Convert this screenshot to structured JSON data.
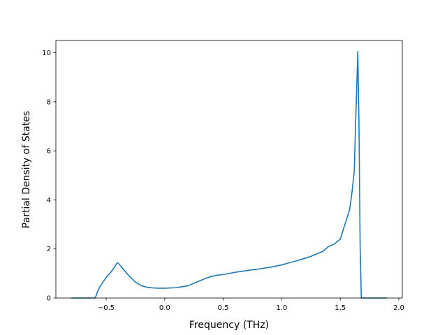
{
  "chart_data": {
    "type": "line",
    "title": "",
    "xlabel": "Frequency (THz)",
    "ylabel": "Partial Density of States",
    "xlim": [
      -0.93,
      2.03
    ],
    "ylim": [
      0,
      10.5
    ],
    "grid": false,
    "x_ticks": [
      -0.5,
      0.0,
      0.5,
      1.0,
      1.5,
      2.0
    ],
    "x_tick_labels": [
      "−0.5",
      "0.0",
      "0.5",
      "1.0",
      "1.5",
      "2.0"
    ],
    "y_ticks": [
      0,
      2,
      4,
      6,
      8,
      10
    ],
    "y_tick_labels": [
      "0",
      "2",
      "4",
      "6",
      "8",
      "10"
    ],
    "colors": {
      "line": "#1f77b4"
    },
    "series": [
      {
        "x": [
          -0.8,
          -0.6,
          -0.59,
          -0.57,
          -0.55,
          -0.52,
          -0.49,
          -0.46,
          -0.43,
          -0.41,
          -0.4,
          -0.38,
          -0.35,
          -0.3,
          -0.25,
          -0.2,
          -0.15,
          -0.1,
          -0.05,
          0.0,
          0.05,
          0.1,
          0.12,
          0.15,
          0.2,
          0.25,
          0.3,
          0.35,
          0.4,
          0.45,
          0.5,
          0.55,
          0.6,
          0.65,
          0.7,
          0.75,
          0.8,
          0.85,
          0.9,
          0.95,
          1.0,
          1.05,
          1.1,
          1.15,
          1.2,
          1.25,
          1.3,
          1.35,
          1.4,
          1.45,
          1.5,
          1.52,
          1.54,
          1.56,
          1.58,
          1.6,
          1.62,
          1.63,
          1.64,
          1.65,
          1.66,
          1.67,
          1.68,
          1.7,
          1.9
        ],
        "y": [
          0,
          0,
          0.05,
          0.3,
          0.5,
          0.7,
          0.9,
          1.05,
          1.25,
          1.42,
          1.43,
          1.33,
          1.15,
          0.88,
          0.65,
          0.5,
          0.44,
          0.41,
          0.4,
          0.4,
          0.41,
          0.42,
          0.44,
          0.46,
          0.5,
          0.6,
          0.7,
          0.8,
          0.88,
          0.93,
          0.96,
          1.0,
          1.05,
          1.08,
          1.12,
          1.15,
          1.18,
          1.22,
          1.25,
          1.3,
          1.35,
          1.42,
          1.48,
          1.55,
          1.62,
          1.7,
          1.8,
          1.9,
          2.1,
          2.2,
          2.4,
          2.7,
          3.0,
          3.3,
          3.6,
          4.3,
          5.2,
          7.0,
          8.5,
          10.05,
          7.0,
          2.0,
          0,
          0,
          0
        ]
      }
    ]
  }
}
